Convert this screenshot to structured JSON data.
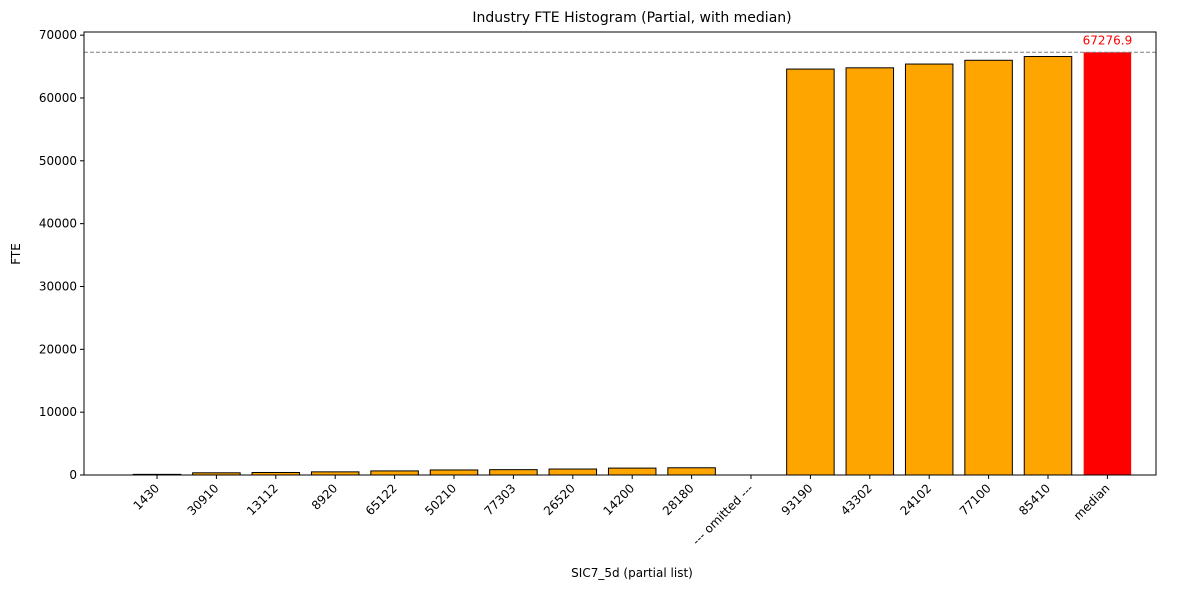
{
  "chart_data": {
    "type": "bar",
    "title": "Industry FTE Histogram (Partial, with median)",
    "xlabel": "SIC7_5d (partial list)",
    "ylabel": "FTE",
    "ylim": [
      0,
      70500
    ],
    "yticks": [
      0,
      10000,
      20000,
      30000,
      40000,
      50000,
      60000,
      70000
    ],
    "grid": false,
    "categories": [
      "1430",
      "30910",
      "13112",
      "8920",
      "65122",
      "50210",
      "77303",
      "26520",
      "14200",
      "28180",
      "--- omitted ---",
      "93190",
      "43302",
      "24102",
      "77100",
      "85410",
      "median"
    ],
    "values": [
      100,
      350,
      400,
      500,
      650,
      800,
      850,
      950,
      1100,
      1150,
      0,
      64600,
      64800,
      65400,
      66000,
      66600,
      67276.9
    ],
    "bar_colors": [
      "#FFA500",
      "#FFA500",
      "#FFA500",
      "#FFA500",
      "#FFA500",
      "#FFA500",
      "#FFA500",
      "#FFA500",
      "#FFA500",
      "#FFA500",
      "#FFA500",
      "#FFA500",
      "#FFA500",
      "#FFA500",
      "#FFA500",
      "#FFA500",
      "#FF0000"
    ],
    "median_value": 67276.9,
    "median_label": "67276.9",
    "median_line_color": "#808080",
    "median_label_color": "#FF0000"
  }
}
